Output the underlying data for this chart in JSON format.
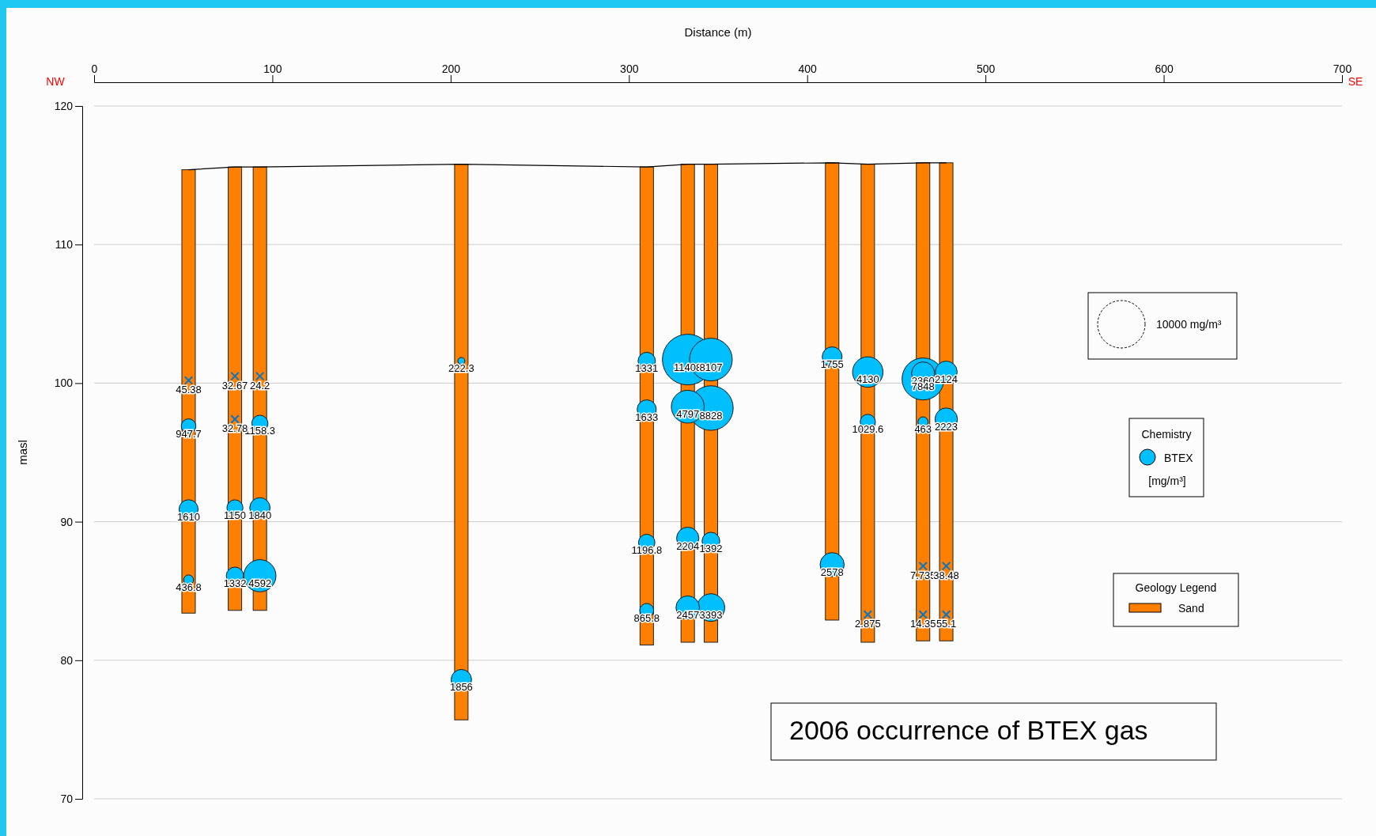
{
  "chart_data": {
    "type": "bubble",
    "title": "2006 occurrence of BTEX gas",
    "xlabel": "Distance (m)",
    "ylabel": "masl",
    "legend_title": "Chemistry",
    "legend": "right",
    "grid": "y",
    "annotations": [
      "NW",
      "SE",
      "Geology Legend",
      "[mg/m³]",
      {
        "text": "45.38",
        "x": 53,
        "y": 100.2
      },
      {
        "text": "32.67",
        "x": 79,
        "y": 100.5
      },
      {
        "text": "32.78",
        "x": 79,
        "y": 97.4
      },
      {
        "text": "24.2",
        "x": 93,
        "y": 100.5
      },
      {
        "text": "2.875",
        "x": 434,
        "y": 83.3
      },
      {
        "text": "7.735",
        "x": 465,
        "y": 86.8
      },
      {
        "text": "14.35",
        "x": 465,
        "y": 83.3
      },
      {
        "text": "38.48",
        "x": 478,
        "y": 86.8
      },
      {
        "text": "55.1",
        "x": 478,
        "y": 83.3
      }
    ],
    "xlim": [
      0,
      700
    ],
    "xticks": [
      0,
      100,
      200,
      300,
      400,
      500,
      600,
      700
    ],
    "ylim": [
      70,
      120
    ],
    "yticks": [
      70,
      80,
      90,
      100,
      110,
      120
    ],
    "size_legend": [
      {
        "value": 10000,
        "label": "10000 mg/m³"
      }
    ],
    "series": [
      {
        "type": "bar",
        "name": "Sand",
        "color": "#ff7f00",
        "x": [
          53,
          79,
          93,
          206,
          310,
          333,
          346,
          414,
          434,
          465,
          478
        ],
        "base": [
          83.4,
          83.6,
          83.6,
          75.7,
          81.1,
          81.3,
          81.3,
          82.9,
          81.3,
          81.4,
          81.4
        ],
        "values": [
          32.0,
          32.0,
          32.0,
          40.1,
          34.5,
          34.5,
          34.5,
          33.0,
          34.5,
          34.5,
          34.5
        ]
      },
      {
        "type": "line",
        "color": "#000000",
        "marker": "none",
        "x": [
          53,
          79,
          93,
          206,
          310,
          333,
          346,
          414,
          434,
          465,
          478
        ],
        "values": [
          115.4,
          115.6,
          115.6,
          115.8,
          115.6,
          115.8,
          115.8,
          115.9,
          115.8,
          115.9,
          115.9
        ]
      },
      {
        "type": "bubble",
        "name": "BTEX",
        "color": "#00bfff",
        "x": [
          53,
          53,
          53,
          79,
          79,
          93,
          93,
          93,
          206,
          206,
          310,
          310,
          310,
          310,
          333,
          333,
          333,
          333,
          346,
          346,
          346,
          346,
          414,
          414,
          434,
          434,
          465,
          465,
          465,
          478,
          478
        ],
        "values": [
          96.9,
          90.9,
          85.8,
          91.0,
          86.1,
          97.1,
          91.0,
          86.1,
          101.6,
          78.6,
          101.6,
          98.1,
          88.5,
          83.6,
          101.7,
          98.3,
          88.8,
          83.8,
          101.7,
          98.2,
          88.6,
          83.8,
          101.9,
          86.9,
          100.8,
          97.2,
          100.7,
          100.3,
          97.2,
          100.8,
          97.4
        ],
        "sizes": [
          947.7,
          1610,
          436.8,
          1150,
          1332,
          1158.3,
          1840,
          4592,
          222.3,
          1856,
          1331,
          1633,
          1196.8,
          865.8,
          11408,
          4797,
          2204,
          2457,
          8107,
          8828,
          1392,
          3393,
          1755,
          2578,
          4130,
          1029.6,
          2360,
          7848,
          463,
          2124,
          2223
        ],
        "value_labels": [
          "947.7",
          "1610",
          "436.8",
          "1150",
          "1332",
          "1158.3",
          "1840",
          "4592",
          "222.3",
          "1856",
          "1331",
          "1633",
          "1196.8",
          "865.8",
          "11408",
          "4797",
          "2204",
          "2457",
          "8107",
          "8828",
          "1392",
          "3393",
          "1755",
          "2578",
          "4130",
          "1029.6",
          "2360",
          "7848",
          "463",
          "2124",
          "2223"
        ]
      },
      {
        "type": "scatter",
        "color": "#0077cc",
        "marker": "cross",
        "x": [
          53,
          79,
          79,
          93,
          434,
          465,
          465,
          478,
          478
        ],
        "values": [
          100.2,
          100.5,
          97.4,
          100.5,
          83.3,
          86.8,
          83.3,
          86.8,
          83.3
        ]
      }
    ]
  }
}
